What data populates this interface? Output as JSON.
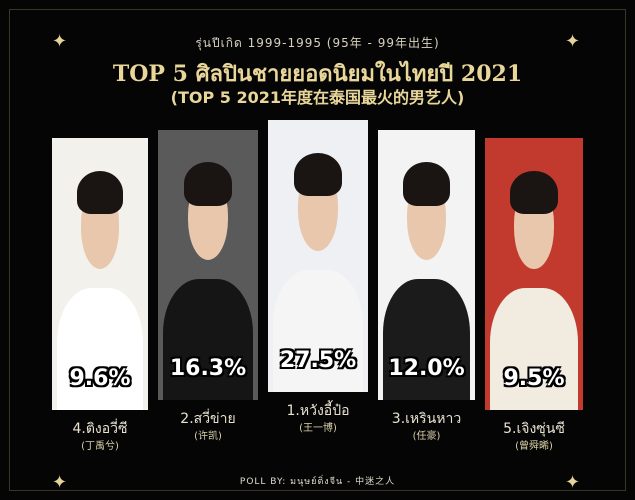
{
  "header": {
    "subtitle": "รุ่นปีเกิด 1999-1995 (95年 - 99年出生)",
    "title": "TOP 5 ศิลปินชายยอดนิยมในไทยปี 2021",
    "title_cn": "(TOP 5  2021年度在泰国最火的男艺人)"
  },
  "colors": {
    "gold": "#e9d79a",
    "background": "#050505"
  },
  "cards": [
    {
      "percent": "9.6%",
      "name": "4.ติงอวี่ซี",
      "name_cn": "(丁禹兮)",
      "bg": "#f2f1ec",
      "shirt": "#ffffff"
    },
    {
      "percent": "16.3%",
      "name": "2.สวี่ข่าย",
      "name_cn": "(许凯)",
      "bg": "#5a5a5a",
      "shirt": "#151515"
    },
    {
      "percent": "27.5%",
      "name": "1.หวังอี้ป๋อ",
      "name_cn": "(王一博)",
      "bg": "#eef0f3",
      "shirt": "#f5f5f5"
    },
    {
      "percent": "12.0%",
      "name": "3.เหรินหาว",
      "name_cn": "(任豪)",
      "bg": "#f3f3f3",
      "shirt": "#1b1b1b"
    },
    {
      "percent": "9.5%",
      "name": "5.เจิงซุ่นซี",
      "name_cn": "(曾舜晞)",
      "bg": "#c23a2e",
      "shirt": "#f1ebe0"
    }
  ],
  "footer": {
    "poll": "POLL BY: มนุษย์ติ่งจีน - 中迷之人"
  }
}
